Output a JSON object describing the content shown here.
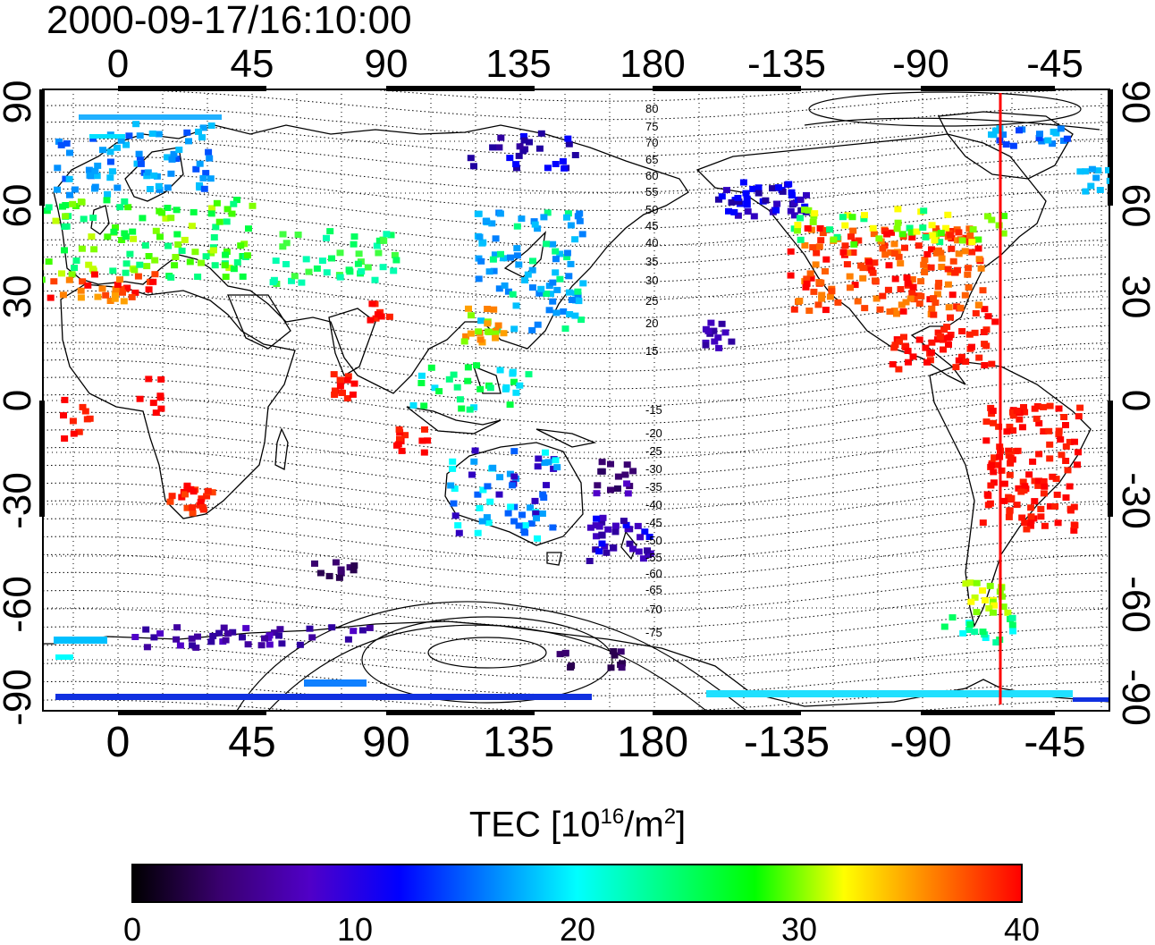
{
  "title": "2000-09-17/16:10:00",
  "map": {
    "lon_ticks_top": [
      "0",
      "45",
      "90",
      "135",
      "180",
      "-135",
      "-90",
      "-45"
    ],
    "lon_ticks_bottom": [
      "0",
      "45",
      "90",
      "135",
      "180",
      "-135",
      "-90",
      "-45"
    ],
    "lat_ticks_left": [
      "90",
      "60",
      "30",
      "0",
      "-30",
      "-60",
      "-90"
    ],
    "lat_ticks_right": [
      "90",
      "60",
      "30",
      "0",
      "-30",
      "-60",
      "-90"
    ],
    "magnetic_lat_labels": [
      "80",
      "75",
      "70",
      "65",
      "60",
      "55",
      "50",
      "45",
      "40",
      "35",
      "30",
      "25",
      "20",
      "15",
      "-15",
      "-20",
      "-25",
      "-30",
      "-35",
      "-40",
      "-45",
      "-50",
      "-55",
      "-60",
      "-65",
      "-70",
      "-75"
    ],
    "terminator_color": "#ff0000"
  },
  "colorbar": {
    "label_main": "TEC  [10",
    "label_exp1": "16",
    "label_mid": "/m",
    "label_exp2": "2",
    "label_end": "]",
    "ticks": [
      "0",
      "10",
      "20",
      "30",
      "40"
    ],
    "stops": [
      "#000000",
      "#3a0070",
      "#5000c8",
      "#0000ff",
      "#0080ff",
      "#00ffff",
      "#00ff80",
      "#00ff00",
      "#ffff00",
      "#ff8000",
      "#ff0000"
    ]
  }
}
